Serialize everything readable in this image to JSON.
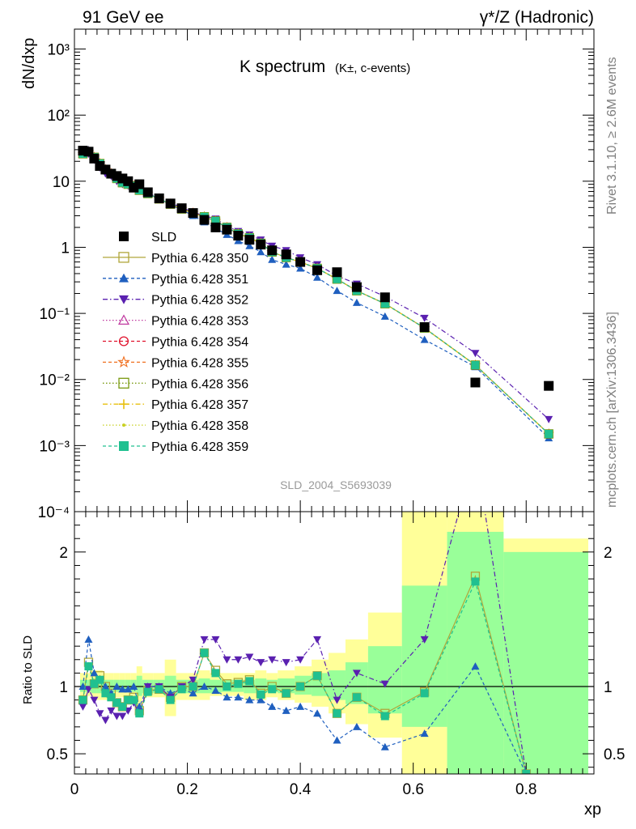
{
  "header": {
    "left_label": "91 GeV ee",
    "right_label": "γ*/Z (Hadronic)"
  },
  "side_text": {
    "rivet": "Rivet 3.1.10, ≥ 2.6M events",
    "mcplots": "mcplots.cern.ch [arXiv:1306.3436]"
  },
  "chart_data": [
    {
      "type": "scatter",
      "panel": "main",
      "title_main": "K spectrum",
      "title_sub": "(K±, c-events)",
      "watermark": "SLD_2004_S5693039",
      "ylabel": "dN/dxp",
      "yscale": "log",
      "ylim": [
        0.0001,
        2000
      ],
      "xlim": [
        0,
        0.92
      ],
      "ytick_labels": [
        "10⁻⁴",
        "10⁻³",
        "10⁻²",
        "10⁻¹",
        "1",
        "10",
        "10²",
        "10³"
      ],
      "legend_placement": "middle-left",
      "x": [
        0.015,
        0.025,
        0.035,
        0.045,
        0.055,
        0.065,
        0.075,
        0.085,
        0.095,
        0.105,
        0.115,
        0.13,
        0.15,
        0.17,
        0.19,
        0.21,
        0.23,
        0.25,
        0.27,
        0.29,
        0.31,
        0.33,
        0.35,
        0.375,
        0.4,
        0.43,
        0.465,
        0.5,
        0.55,
        0.62,
        0.71,
        0.84
      ],
      "series": [
        {
          "name": "SLD",
          "color": "#000000",
          "marker": "square-filled",
          "line": "none",
          "values": [
            29.0,
            28.0,
            22.0,
            17.0,
            15.0,
            13.0,
            12.0,
            11.0,
            10.0,
            8.0,
            9.0,
            6.8,
            5.5,
            4.6,
            3.9,
            3.3,
            2.6,
            2.0,
            1.85,
            1.5,
            1.3,
            1.1,
            0.9,
            0.78,
            0.6,
            0.45,
            0.42,
            0.25,
            0.175,
            0.062,
            0.009,
            0.008
          ]
        },
        {
          "name": "Pythia 6.428 350",
          "color": "#b0a63a",
          "marker": "square-open",
          "line": "solid",
          "values": [
            26.0,
            28.0,
            23.0,
            18.5,
            15.0,
            13.0,
            11.0,
            9.5,
            9.0,
            8.5,
            7.3,
            6.5,
            5.4,
            4.5,
            3.8,
            3.3,
            2.9,
            2.5,
            2.0,
            1.6,
            1.4,
            1.15,
            0.85,
            0.7,
            0.6,
            0.48,
            0.33,
            0.22,
            0.14,
            0.06,
            0.0165,
            0.0015
          ]
        },
        {
          "name": "Pythia 6.428 351",
          "color": "#1f5fbf",
          "marker": "triangle-up-filled",
          "line": "dashed",
          "values": [
            26.0,
            30.0,
            24.0,
            19.0,
            15.0,
            13.5,
            11.0,
            9.5,
            9.0,
            8.5,
            7.3,
            6.5,
            5.4,
            4.4,
            3.7,
            3.0,
            2.4,
            1.95,
            1.55,
            1.25,
            1.05,
            0.85,
            0.65,
            0.55,
            0.48,
            0.35,
            0.22,
            0.145,
            0.09,
            0.04,
            0.0155,
            0.0013
          ]
        },
        {
          "name": "Pythia 6.428 352",
          "color": "#5a20b0",
          "marker": "triangle-down-filled",
          "line": "dashdot",
          "values": [
            27.0,
            26.0,
            21.0,
            16.0,
            13.0,
            12.0,
            10.0,
            9.0,
            8.5,
            8.0,
            7.2,
            6.6,
            5.6,
            4.7,
            4.0,
            3.4,
            3.0,
            2.7,
            2.1,
            1.75,
            1.55,
            1.3,
            1.05,
            0.9,
            0.7,
            0.55,
            0.37,
            0.28,
            0.18,
            0.085,
            0.025,
            0.0025
          ]
        },
        {
          "name": "Pythia 6.428 353",
          "color": "#c03aa0",
          "marker": "triangle-up-open",
          "line": "dotted",
          "values": [
            26.0,
            28.0,
            23.0,
            18.5,
            15.0,
            13.0,
            11.0,
            9.5,
            9.0,
            8.5,
            7.3,
            6.5,
            5.4,
            4.5,
            3.8,
            3.3,
            2.9,
            2.5,
            2.0,
            1.6,
            1.4,
            1.15,
            0.85,
            0.7,
            0.6,
            0.48,
            0.33,
            0.22,
            0.14,
            0.06,
            0.0165,
            0.0015
          ]
        },
        {
          "name": "Pythia 6.428 354",
          "color": "#e0102a",
          "marker": "circle-open",
          "line": "dashed",
          "values": [
            26.0,
            28.0,
            23.0,
            18.5,
            15.0,
            13.0,
            11.0,
            9.5,
            9.0,
            8.5,
            7.3,
            6.5,
            5.4,
            4.5,
            3.8,
            3.3,
            2.9,
            2.5,
            2.0,
            1.6,
            1.4,
            1.15,
            0.85,
            0.7,
            0.6,
            0.48,
            0.33,
            0.22,
            0.14,
            0.06,
            0.0165,
            0.0015
          ]
        },
        {
          "name": "Pythia 6.428 355",
          "color": "#f07020",
          "marker": "star-open",
          "line": "dashed",
          "values": [
            26.0,
            28.0,
            23.0,
            18.5,
            15.0,
            13.0,
            11.0,
            9.5,
            9.0,
            8.5,
            7.3,
            6.5,
            5.4,
            4.5,
            3.8,
            3.3,
            2.9,
            2.5,
            2.0,
            1.6,
            1.4,
            1.15,
            0.85,
            0.7,
            0.6,
            0.48,
            0.33,
            0.22,
            0.14,
            0.06,
            0.0165,
            0.0015
          ]
        },
        {
          "name": "Pythia 6.428 356",
          "color": "#7a9a10",
          "marker": "square-open",
          "line": "dotted",
          "values": [
            26.0,
            28.0,
            23.0,
            18.5,
            15.0,
            13.0,
            11.0,
            9.5,
            9.0,
            8.5,
            7.3,
            6.5,
            5.4,
            4.5,
            3.8,
            3.3,
            2.9,
            2.5,
            2.0,
            1.6,
            1.4,
            1.15,
            0.85,
            0.7,
            0.6,
            0.48,
            0.33,
            0.22,
            0.14,
            0.06,
            0.0165,
            0.0015
          ]
        },
        {
          "name": "Pythia 6.428 357",
          "color": "#e8c010",
          "marker": "cross",
          "line": "dashdot",
          "values": [
            26.0,
            28.0,
            23.0,
            18.5,
            15.0,
            13.0,
            11.0,
            9.5,
            9.0,
            8.5,
            7.3,
            6.5,
            5.4,
            4.5,
            3.8,
            3.3,
            2.9,
            2.5,
            2.0,
            1.6,
            1.4,
            1.15,
            0.85,
            0.7,
            0.6,
            0.48,
            0.33,
            0.22,
            0.14,
            0.06,
            0.0165,
            0.0015
          ]
        },
        {
          "name": "Pythia 6.428 358",
          "color": "#c8d020",
          "marker": "dot",
          "line": "dotted",
          "values": [
            26.0,
            28.0,
            23.0,
            18.5,
            15.0,
            13.0,
            11.0,
            9.5,
            9.0,
            8.5,
            7.3,
            6.5,
            5.4,
            4.5,
            3.8,
            3.3,
            2.9,
            2.5,
            2.0,
            1.6,
            1.4,
            1.15,
            0.85,
            0.7,
            0.6,
            0.48,
            0.33,
            0.22,
            0.14,
            0.06,
            0.0165,
            0.0015
          ]
        },
        {
          "name": "Pythia 6.428 359",
          "color": "#20c090",
          "marker": "square-filled",
          "line": "dashed",
          "values": [
            26.0,
            28.0,
            23.0,
            18.5,
            15.0,
            13.0,
            11.0,
            9.5,
            9.0,
            8.5,
            7.3,
            6.5,
            5.4,
            4.5,
            3.8,
            3.3,
            2.9,
            2.5,
            2.0,
            1.6,
            1.4,
            1.15,
            0.85,
            0.7,
            0.6,
            0.48,
            0.33,
            0.22,
            0.14,
            0.06,
            0.0165,
            0.0015
          ]
        }
      ]
    },
    {
      "type": "line",
      "panel": "ratio",
      "ylabel": "Ratio to SLD",
      "xlabel": "xp",
      "ylim": [
        0.35,
        2.3
      ],
      "xlim": [
        0,
        0.92
      ],
      "xtick_labels": [
        "0",
        "0.2",
        "0.4",
        "0.6",
        "0.8"
      ],
      "ytick_labels": [
        "0.5",
        "1",
        "2"
      ],
      "bands": {
        "x_edges": [
          0.01,
          0.02,
          0.03,
          0.04,
          0.05,
          0.06,
          0.07,
          0.08,
          0.09,
          0.1,
          0.11,
          0.12,
          0.14,
          0.16,
          0.18,
          0.2,
          0.22,
          0.24,
          0.26,
          0.28,
          0.3,
          0.32,
          0.34,
          0.36,
          0.39,
          0.42,
          0.45,
          0.48,
          0.52,
          0.58,
          0.66,
          0.76,
          0.91
        ],
        "yellow_lo": [
          0.93,
          0.93,
          0.9,
          0.9,
          0.9,
          0.9,
          0.92,
          0.92,
          0.92,
          0.92,
          0.85,
          0.92,
          0.92,
          0.78,
          0.9,
          0.9,
          0.9,
          0.93,
          0.93,
          0.93,
          0.9,
          0.9,
          0.92,
          0.9,
          0.88,
          0.85,
          0.8,
          0.72,
          0.62,
          0.35,
          0.35,
          0.35
        ],
        "yellow_hi": [
          1.1,
          1.1,
          1.12,
          1.12,
          1.1,
          1.1,
          1.1,
          1.1,
          1.1,
          1.1,
          1.15,
          1.1,
          1.1,
          1.2,
          1.1,
          1.1,
          1.12,
          1.1,
          1.1,
          1.1,
          1.1,
          1.12,
          1.1,
          1.12,
          1.15,
          1.2,
          1.25,
          1.35,
          1.55,
          2.3,
          2.3,
          2.1
        ],
        "green_lo": [
          0.96,
          0.96,
          0.95,
          0.95,
          0.95,
          0.95,
          0.96,
          0.96,
          0.96,
          0.96,
          0.93,
          0.95,
          0.95,
          0.93,
          0.95,
          0.95,
          0.95,
          0.95,
          0.96,
          0.96,
          0.95,
          0.95,
          0.96,
          0.95,
          0.94,
          0.93,
          0.9,
          0.87,
          0.8,
          0.7,
          0.35,
          0.35
        ],
        "green_hi": [
          1.05,
          1.05,
          1.06,
          1.06,
          1.05,
          1.05,
          1.05,
          1.05,
          1.05,
          1.05,
          1.08,
          1.05,
          1.05,
          1.08,
          1.05,
          1.05,
          1.06,
          1.05,
          1.05,
          1.05,
          1.05,
          1.06,
          1.05,
          1.06,
          1.08,
          1.1,
          1.12,
          1.18,
          1.3,
          1.75,
          2.15,
          2.0
        ]
      },
      "x": [
        0.015,
        0.025,
        0.035,
        0.045,
        0.055,
        0.065,
        0.075,
        0.085,
        0.095,
        0.105,
        0.115,
        0.13,
        0.15,
        0.17,
        0.19,
        0.21,
        0.23,
        0.25,
        0.27,
        0.29,
        0.31,
        0.33,
        0.35,
        0.375,
        0.4,
        0.43,
        0.465,
        0.5,
        0.55,
        0.62,
        0.71,
        0.8
      ],
      "series": [
        {
          "name": "Pythia 6.428 350",
          "values": [
            0.9,
            1.18,
            1.02,
            1.08,
            1.0,
            0.95,
            0.88,
            0.85,
            0.9,
            0.92,
            0.82,
            0.97,
            0.98,
            0.92,
            1.0,
            1.0,
            1.25,
            1.12,
            1.02,
            1.03,
            1.05,
            0.95,
            1.0,
            0.95,
            1.0,
            1.08,
            0.8,
            0.92,
            0.8,
            0.96,
            1.82,
            0.35
          ]
        },
        {
          "name": "Pythia 6.428 351",
          "values": [
            1.0,
            1.35,
            1.1,
            1.05,
            1.0,
            0.95,
            1.0,
            0.98,
            0.98,
            1.0,
            0.85,
            1.0,
            1.0,
            0.95,
            0.98,
            0.95,
            1.0,
            0.97,
            0.92,
            0.92,
            0.9,
            0.9,
            0.85,
            0.82,
            0.85,
            0.8,
            0.6,
            0.7,
            0.55,
            0.65,
            1.15,
            0.35
          ]
        },
        {
          "name": "Pythia 6.428 352",
          "values": [
            0.85,
            0.98,
            0.9,
            0.8,
            0.75,
            0.82,
            0.78,
            0.78,
            0.82,
            0.88,
            0.8,
            1.0,
            1.0,
            0.92,
            1.0,
            1.05,
            1.35,
            1.35,
            1.2,
            1.2,
            1.22,
            1.18,
            1.2,
            1.18,
            1.2,
            1.35,
            0.9,
            1.1,
            1.02,
            1.35,
            2.75,
            0.35
          ]
        },
        {
          "name": "Pythia 6.428 359",
          "values": [
            0.9,
            1.15,
            1.02,
            1.05,
            0.95,
            0.92,
            0.88,
            0.85,
            0.9,
            0.9,
            0.8,
            0.96,
            0.98,
            0.9,
            0.98,
            1.0,
            1.25,
            1.1,
            1.0,
            1.02,
            1.04,
            0.94,
            0.98,
            0.95,
            1.0,
            1.08,
            0.8,
            0.92,
            0.78,
            0.95,
            1.78,
            0.35
          ]
        }
      ]
    }
  ]
}
